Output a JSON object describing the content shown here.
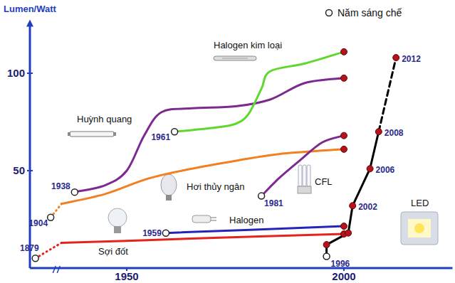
{
  "chart_data": {
    "type": "line",
    "ylabel": "Lumen/Watt",
    "annotations": [
      "Năm sáng chế"
    ],
    "xlim": [
      1870,
      2025
    ],
    "xbreak": [
      1905,
      1935
    ],
    "xticks": [
      1950,
      2000
    ],
    "ylim": [
      0,
      125
    ],
    "yticks": [
      50,
      100
    ],
    "grid": false,
    "series": [
      {
        "name": "Sợi đốt",
        "color": "#e3231c",
        "line_style": "smooth",
        "marker": "ends",
        "x": [
          1879,
          1935,
          1950,
          1970,
          2000
        ],
        "values": [
          5,
          13,
          14,
          15.5,
          17.5
        ],
        "x_labels": [
          "1879",
          null,
          null,
          null,
          null
        ]
      },
      {
        "name": "Halogen",
        "color": "#2525b8",
        "line_style": "smooth",
        "marker": "ends",
        "x": [
          1959,
          2000
        ],
        "values": [
          18,
          21.5
        ],
        "x_labels": [
          "1959",
          null
        ]
      },
      {
        "name": "Hơi thủy ngân",
        "color": "#f28020",
        "line_style": "smooth",
        "marker": "ends",
        "x": [
          1904,
          1935,
          1945,
          1955,
          1965,
          1975,
          1985,
          2000
        ],
        "values": [
          26,
          33,
          38,
          46,
          51,
          55,
          58.5,
          61
        ],
        "x_labels": [
          "1904",
          null,
          null,
          null,
          null,
          null,
          null,
          null
        ]
      },
      {
        "name": "Huỳnh quang",
        "color": "#7d2a90",
        "line_style": "smooth",
        "marker": "ends",
        "x": [
          1938,
          1945,
          1950,
          1954,
          1958,
          1965,
          1975,
          1983,
          1991,
          2000
        ],
        "values": [
          39,
          42.5,
          50,
          68,
          80,
          82,
          83,
          86.5,
          95,
          97.5
        ],
        "x_labels": [
          "1938",
          null,
          null,
          null,
          null,
          null,
          null,
          null,
          null,
          null
        ]
      },
      {
        "name": "Halogen kim loại",
        "color": "#5fd82e",
        "line_style": "smooth",
        "marker": "ends",
        "x": [
          1961,
          1970,
          1975,
          1978,
          1981,
          1983,
          1991,
          2000
        ],
        "values": [
          70,
          72,
          74,
          79,
          92,
          101,
          105,
          111
        ],
        "x_labels": [
          "1961",
          null,
          null,
          null,
          null,
          null,
          null,
          null
        ]
      },
      {
        "name": "CFL",
        "color": "#7d2a90",
        "line_style": "smooth",
        "marker": "ends",
        "x": [
          1981,
          1985,
          1990,
          1995,
          2000
        ],
        "values": [
          37,
          46,
          55.5,
          64.5,
          68
        ],
        "x_labels": [
          "1981",
          null,
          null,
          null,
          null
        ]
      },
      {
        "name": "LED",
        "color": "#000000",
        "line_style": "solid",
        "marker": "all",
        "dashed_from": 2008,
        "x": [
          1996,
          1996,
          2001,
          2002,
          2006,
          2008,
          2012
        ],
        "values": [
          6,
          12,
          18,
          32,
          51,
          70,
          108
        ],
        "x_labels": [
          "1996",
          null,
          null,
          "2002",
          "2006",
          "2008",
          "2012"
        ]
      }
    ]
  }
}
